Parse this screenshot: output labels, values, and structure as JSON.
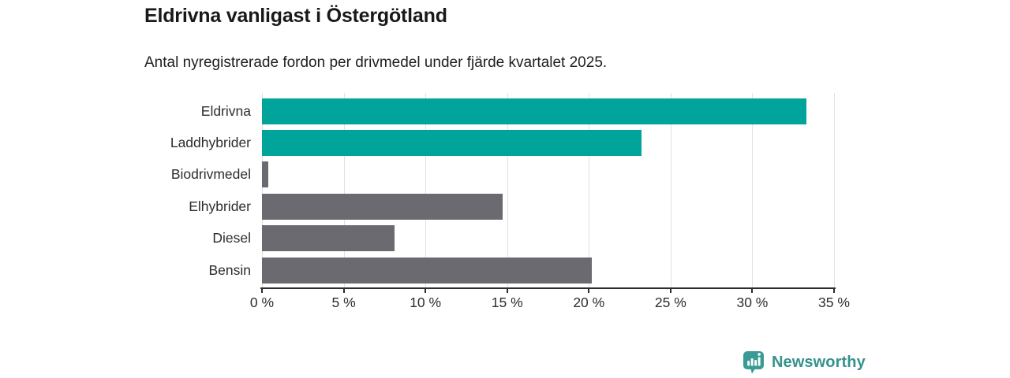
{
  "title": "Eldrivna vanligast i Östergötland",
  "subtitle": "Antal nyregistrerade fordon per drivmedel under fjärde kvartalet 2025.",
  "colors": {
    "bar_teal": "#00a49a",
    "bar_gray": "#6a6a70",
    "gridline": "#e1e1e1",
    "axis": "#2d2d2d",
    "tick_text": "#2d2d2d",
    "title_text": "#191919",
    "logo_teal": "#3a9a94",
    "logo_text": "#35928d"
  },
  "chart_data": {
    "type": "bar",
    "orientation": "horizontal",
    "title": "Eldrivna vanligast i Östergötland",
    "subtitle": "Antal nyregistrerade fordon per drivmedel under fjärde kvartalet 2025.",
    "categories": [
      "Eldrivna",
      "Laddhybrider",
      "Biodrivmedel",
      "Elhybrider",
      "Diesel",
      "Bensin"
    ],
    "values": [
      33.3,
      23.2,
      0.4,
      14.7,
      8.1,
      20.2
    ],
    "unit": "%",
    "bar_colors": [
      "#00a49a",
      "#00a49a",
      "#6a6a70",
      "#6a6a70",
      "#6a6a70",
      "#6a6a70"
    ],
    "xlabel": "",
    "ylabel": "",
    "xlim": [
      0,
      35
    ],
    "xticks": [
      0,
      5,
      10,
      15,
      20,
      25,
      30,
      35
    ],
    "xtick_labels": [
      "0 %",
      "5 %",
      "10 %",
      "15 %",
      "20 %",
      "25 %",
      "30 %",
      "35 %"
    ],
    "grid": true,
    "legend": false
  },
  "footer": {
    "brand": "Newsworthy"
  }
}
